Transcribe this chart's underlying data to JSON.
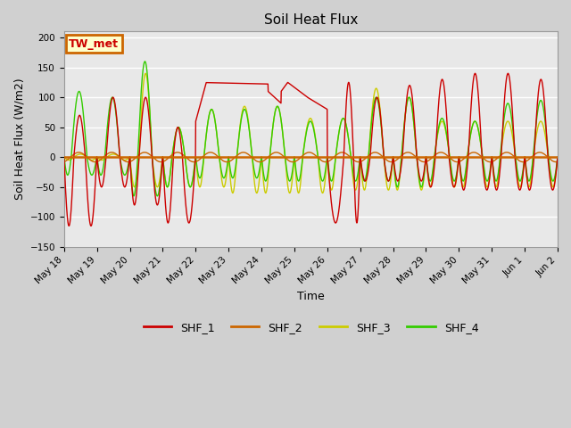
{
  "title": "Soil Heat Flux",
  "xlabel": "Time",
  "ylabel": "Soil Heat Flux (W/m2)",
  "ylim": [
    -150,
    210
  ],
  "yticks": [
    -150,
    -100,
    -50,
    0,
    50,
    100,
    150,
    200
  ],
  "colors": {
    "SHF_1": "#cc0000",
    "SHF_2": "#cc6600",
    "SHF_3": "#cccc00",
    "SHF_4": "#33cc00"
  },
  "annotation": "TW_met",
  "annotation_color": "#cc0000",
  "annotation_bg": "#ffffcc",
  "annotation_border": "#cc6600",
  "fig_bg": "#d0d0d0",
  "plot_bg": "#e8e8e8",
  "grid_color": "#ffffff",
  "hline_color": "#cc6600",
  "hline_y": 0,
  "legend_entries": [
    "SHF_1",
    "SHF_2",
    "SHF_3",
    "SHF_4"
  ],
  "x_tick_labels": [
    "May 18",
    "May 19",
    "May 20",
    "May 21",
    "May 22",
    "May 23",
    "May 24",
    "May 25",
    "May 26",
    "May 27",
    "May 28",
    "May 29",
    "May 30",
    "May 31",
    "Jun 1",
    "Jun 2"
  ],
  "n_days": 16
}
